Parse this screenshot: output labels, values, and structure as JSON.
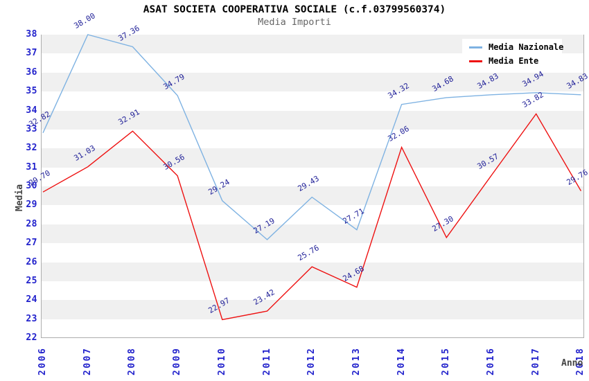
{
  "title": "ASAT SOCIETA COOPERATIVA SOCIALE (c.f.03799560374)",
  "subtitle": "Media Importi",
  "chart_data": {
    "type": "line",
    "title": "ASAT SOCIETA COOPERATIVA SOCIALE (c.f.03799560374)",
    "subtitle": "Media Importi",
    "xlabel": "Anno",
    "ylabel": "Media",
    "categories": [
      "2006",
      "2007",
      "2008",
      "2009",
      "2010",
      "2011",
      "2012",
      "2013",
      "2014",
      "2015",
      "2016",
      "2017",
      "2018"
    ],
    "series": [
      {
        "name": "Media Nazionale",
        "color": "#7EB2E2",
        "values": [
          32.82,
          38.0,
          37.36,
          34.79,
          29.24,
          27.19,
          29.43,
          27.71,
          34.32,
          34.68,
          34.83,
          34.94,
          34.83
        ]
      },
      {
        "name": "Media Ente",
        "color": "#EE1111",
        "values": [
          29.7,
          31.03,
          32.91,
          30.56,
          22.97,
          23.42,
          25.76,
          24.68,
          32.06,
          27.3,
          30.57,
          33.82,
          29.76
        ]
      }
    ],
    "ylim": [
      22,
      38
    ],
    "ytick_step": 1,
    "grid": "alternating-horizontal-bands",
    "legend_position": "top-right",
    "data_labels": "shown, 2 decimals, rotated"
  },
  "colors": {
    "band": "#f0f0f0",
    "axis_border": "#adadad",
    "tick_label": "#2222cc",
    "data_label": "#222299",
    "title": "#000000",
    "subtitle": "#666666",
    "axis_title": "#444444",
    "legend_bg": "#ffffff"
  }
}
